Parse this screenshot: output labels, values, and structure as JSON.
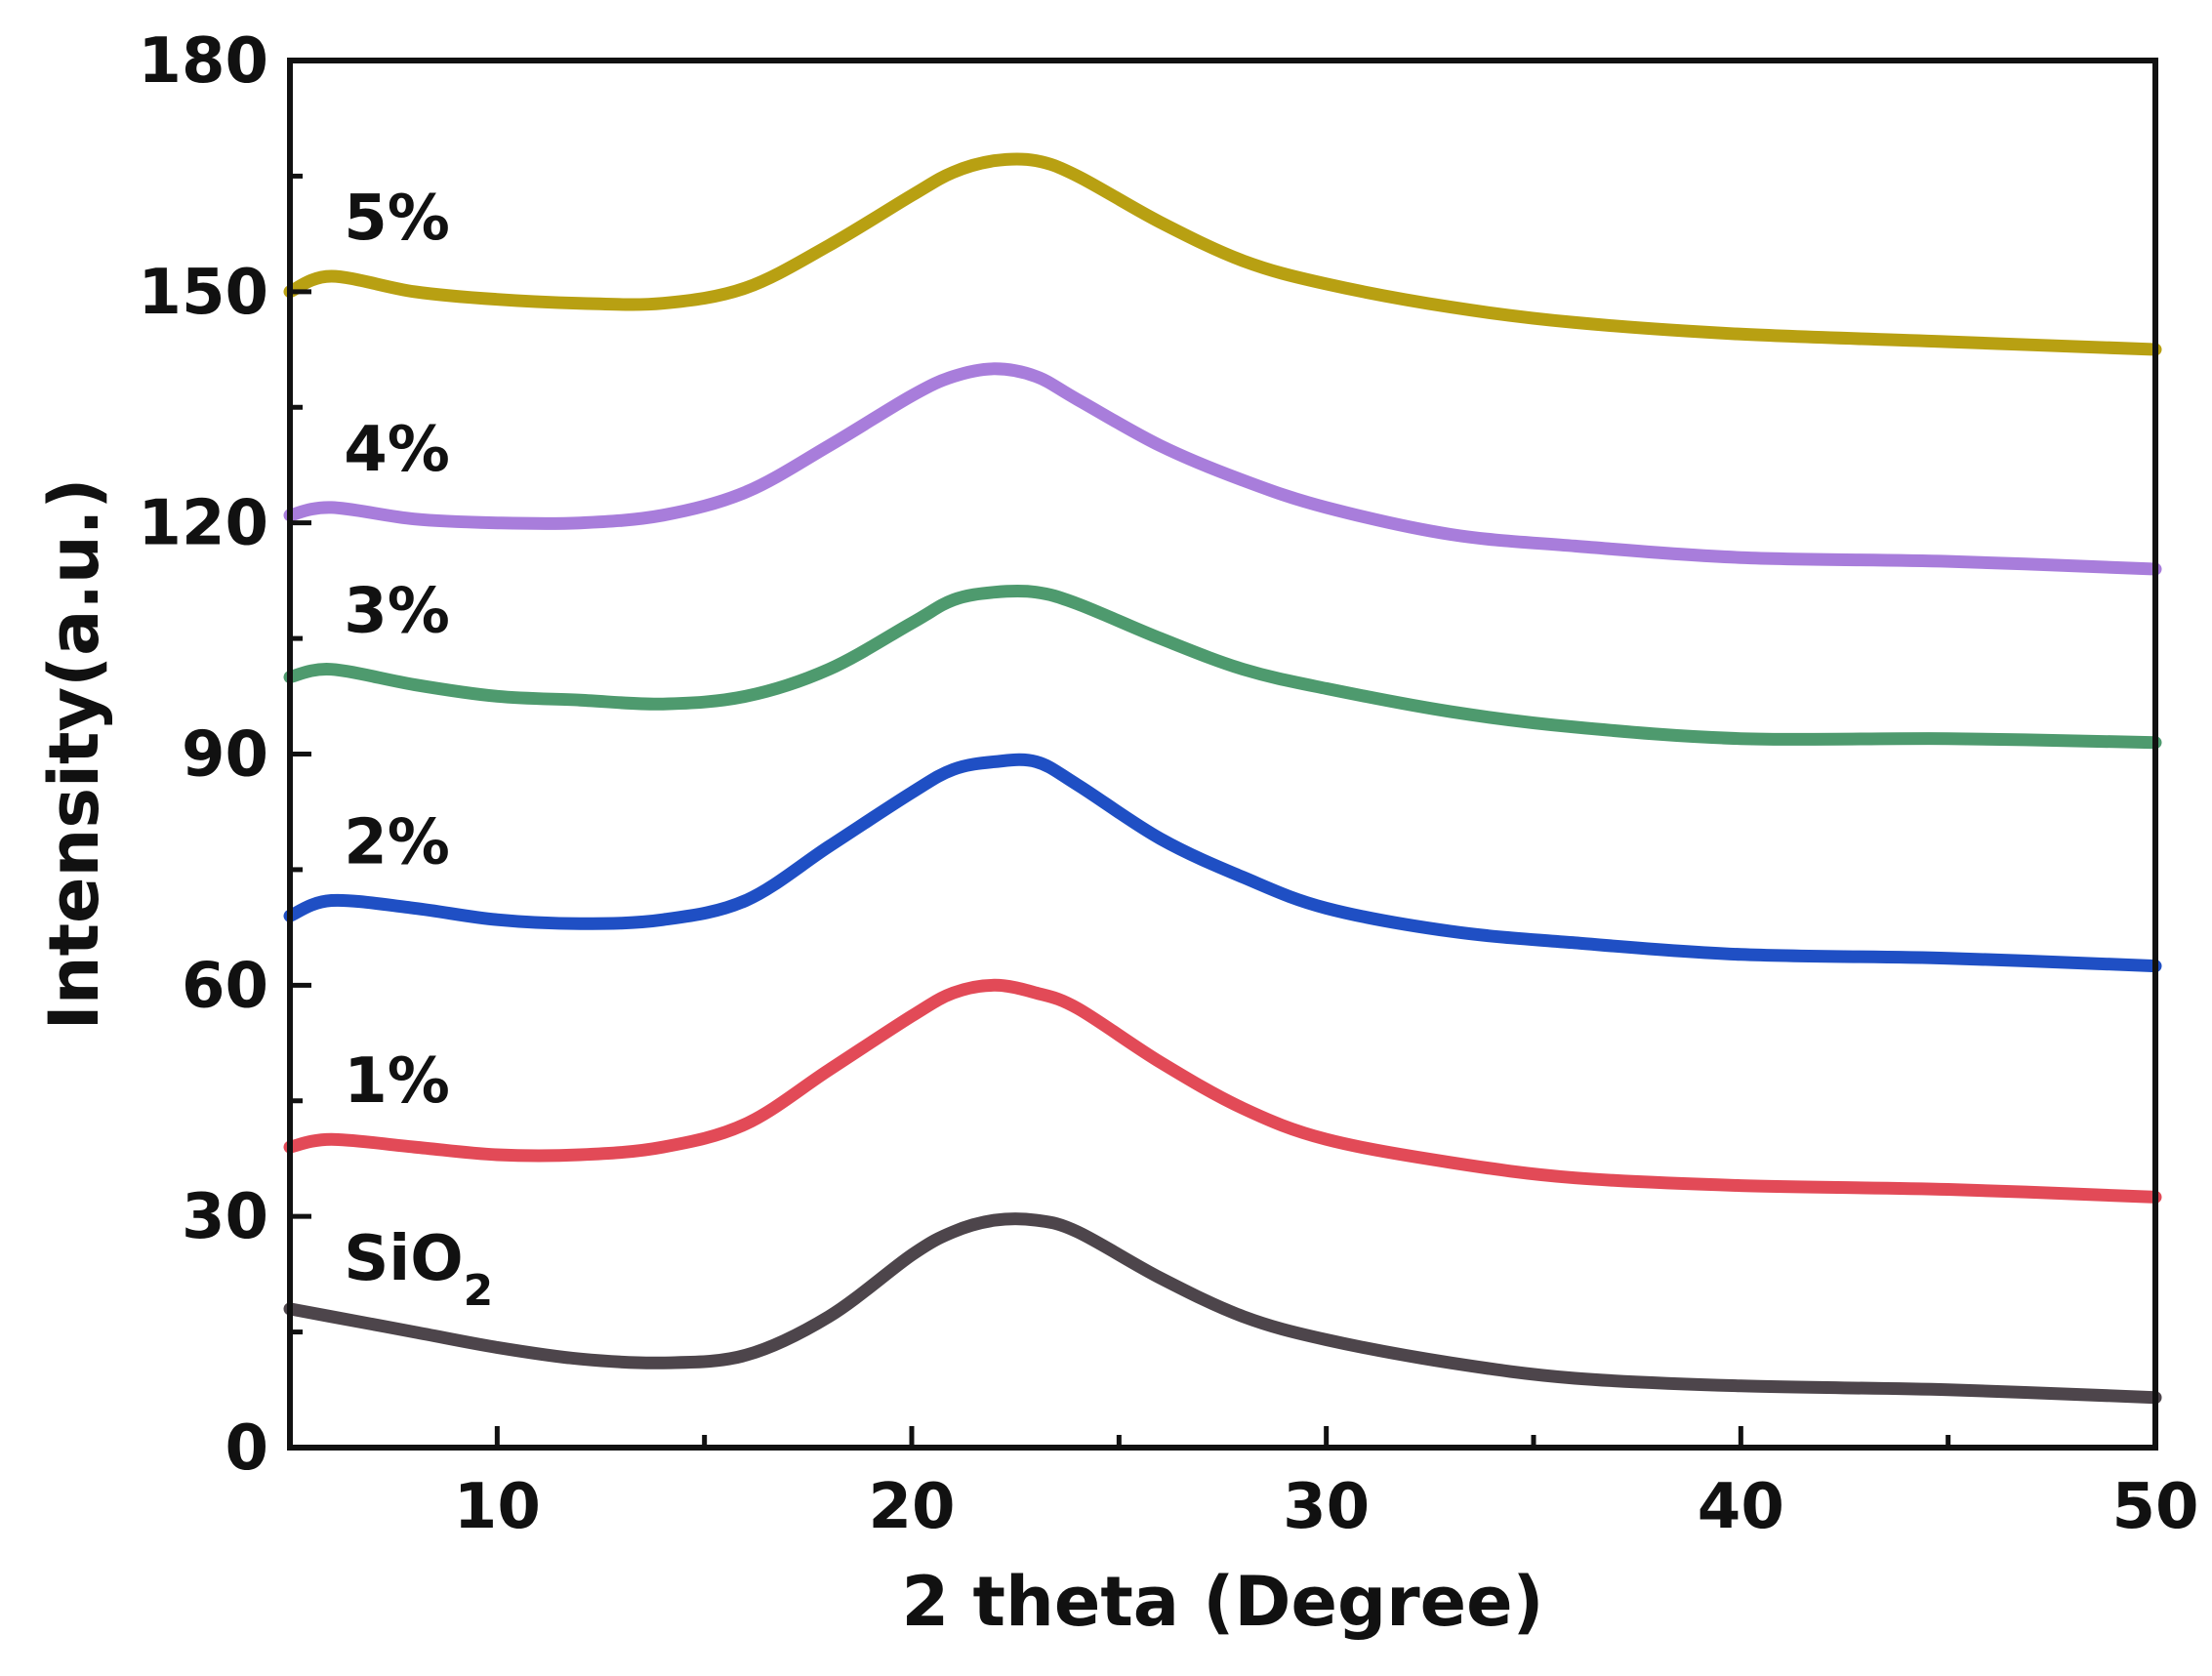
{
  "chart_data": {
    "type": "line",
    "title": "",
    "xlabel": "2 theta (Degree)",
    "ylabel": "Intensity(a.u.)",
    "xlim": [
      5,
      50
    ],
    "ylim": [
      0,
      180
    ],
    "xticks": [
      10,
      20,
      30,
      40,
      50
    ],
    "yticks": [
      0,
      30,
      60,
      90,
      120,
      150,
      180
    ],
    "x": [
      5,
      6,
      8,
      10,
      12,
      14,
      16,
      18,
      20,
      21,
      22,
      23,
      24,
      26,
      28,
      30,
      33,
      36,
      40,
      45,
      50
    ],
    "series": [
      {
        "name": "SiO",
        "name_sub": "2",
        "color": "#4d454b",
        "values": [
          18,
          17,
          15,
          13,
          11.5,
          11,
          12,
          17,
          25,
          28,
          29.5,
          29.5,
          28,
          22,
          17,
          14,
          11,
          9,
          8,
          7.5,
          6.5
        ]
      },
      {
        "name": "1%",
        "color": "#e24a57",
        "values": [
          39,
          40,
          39,
          38,
          38,
          39,
          42,
          49,
          56,
          59,
          60,
          59,
          57,
          50,
          44,
          40,
          37,
          35,
          34,
          33.5,
          32.5
        ]
      },
      {
        "name": "2%",
        "color": "#1f4fc4",
        "values": [
          69,
          71,
          70,
          68.5,
          68,
          68.5,
          71,
          78,
          85,
          88,
          89,
          89,
          86,
          79,
          74,
          70,
          67,
          65.5,
          64,
          63.5,
          62.5
        ]
      },
      {
        "name": "3%",
        "color": "#4e9a6e",
        "values": [
          100,
          101,
          99,
          97.5,
          97,
          96.5,
          97.5,
          101,
          107,
          110,
          111,
          111,
          109.5,
          105,
          101,
          98.5,
          95.5,
          93.5,
          92,
          92,
          91.5
        ]
      },
      {
        "name": "4%",
        "color": "#a87ddb",
        "values": [
          121,
          122,
          120.5,
          120,
          120,
          121,
          124,
          130,
          136.5,
          139,
          140,
          139,
          136,
          130,
          125.5,
          122,
          118.5,
          117,
          115.5,
          115,
          114
        ]
      },
      {
        "name": "5%",
        "color": "#b8a012",
        "values": [
          150,
          152,
          150,
          149,
          148.5,
          148.5,
          150.5,
          156,
          162.5,
          165.5,
          167,
          167,
          165,
          159,
          154,
          151,
          148,
          146,
          144.5,
          143.5,
          142.5
        ]
      }
    ]
  }
}
